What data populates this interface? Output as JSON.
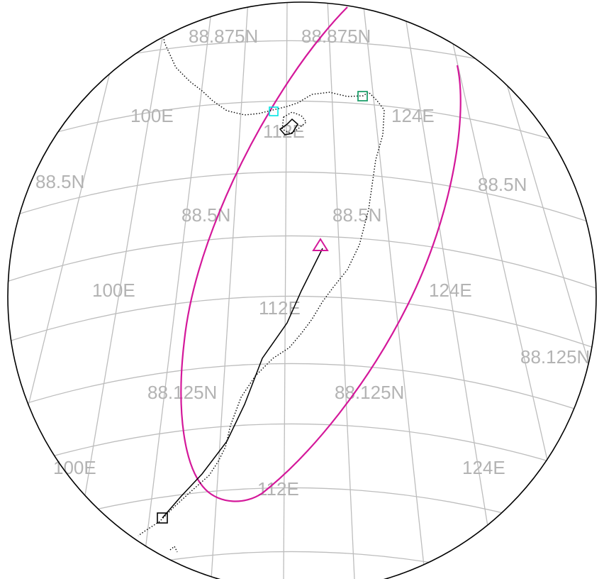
{
  "map": {
    "grid_labels": {
      "lat_north_a": "88.875N",
      "lat_north_b": "88.875N",
      "lat_mid_left": "88.5N",
      "lat_mid_right": "88.5N",
      "lat_mid_inner_a": "88.5N",
      "lat_mid_inner_b": "88.5N",
      "lat_south_inner_a": "88.125N",
      "lat_south_inner_b": "88.125N",
      "lat_south_right": "88.125N",
      "lon_100_top": "100E",
      "lon_112_top": "112E",
      "lon_124_top": "124E",
      "lon_100_mid": "100E",
      "lon_112_mid": "112E",
      "lon_124_mid": "124E",
      "lon_100_bot": "100E",
      "lon_112_bot": "112E",
      "lon_124_bot": "124E"
    },
    "colors": {
      "boundary": "#000000",
      "ellipse": "#d4189a",
      "grid": "#bdbdbd",
      "label": "#b3b3b3",
      "start_marker": "#000000",
      "end_marker": "#d4189a",
      "cyan_marker": "#00e5e5",
      "green_marker": "#1f9e6b"
    },
    "markers": [
      {
        "name": "start-square",
        "shape": "square"
      },
      {
        "name": "end-triangle",
        "shape": "triangle"
      },
      {
        "name": "cyan-square",
        "shape": "square"
      },
      {
        "name": "green-square",
        "shape": "square"
      }
    ]
  }
}
